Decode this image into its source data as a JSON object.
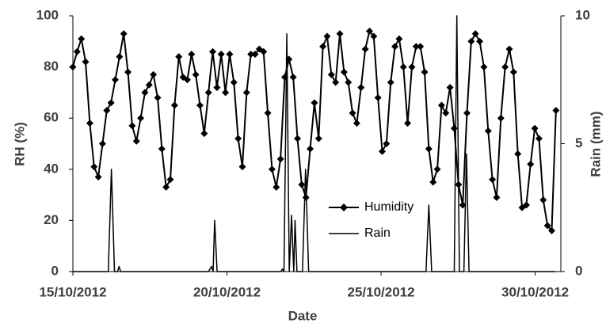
{
  "chart_data": {
    "type": "line",
    "x_label": "Date",
    "y_label": "RH (%)",
    "y2_label": "Rain (mm)",
    "xlim": [
      0,
      380
    ],
    "xticks": [
      {
        "value": 0,
        "label": "15/10/2012"
      },
      {
        "value": 120,
        "label": "20/10/2012"
      },
      {
        "value": 240,
        "label": "25/10/2012"
      },
      {
        "value": 360,
        "label": "30/10/2012"
      }
    ],
    "ylim": [
      0,
      100
    ],
    "yticks": [
      0,
      20,
      40,
      60,
      80,
      100
    ],
    "y2lim": [
      0,
      10
    ],
    "y2ticks": [
      0,
      5,
      10
    ],
    "grid": false,
    "legend": "lower center",
    "series": [
      {
        "name": "Humidity",
        "color": "#000000",
        "marker": "diamond",
        "x": [
          0,
          3.3,
          6.6,
          9.9,
          13.2,
          16.5,
          19.8,
          23.1,
          26.4,
          29.7,
          33,
          36.3,
          39.6,
          42.9,
          46.2,
          49.5,
          52.8,
          56.1,
          59.4,
          62.7,
          66,
          69.3,
          72.6,
          75.9,
          79.2,
          82.5,
          85.8,
          89.1,
          92.4,
          95.7,
          99,
          102.3,
          105.6,
          108.9,
          112.2,
          115.5,
          118.8,
          122.1,
          125.4,
          128.7,
          132,
          135.3,
          138.6,
          141.9,
          145.2,
          148.5,
          151.8,
          155.1,
          158.4,
          161.7,
          165,
          168.3,
          171.6,
          174.9,
          178.2,
          181.5,
          184.8,
          188.1,
          191.4,
          194.7,
          198,
          201.3,
          204.6,
          207.9,
          211.2,
          214.5,
          217.8,
          221.1,
          224.4,
          227.7,
          231,
          234.3,
          237.6,
          240.9,
          244.2,
          247.5,
          250.8,
          254.1,
          257.4,
          260.7,
          264,
          267.3,
          270.6,
          273.9,
          277.2,
          280.5,
          283.8,
          287.1,
          290.4,
          293.7,
          297,
          300.3,
          303.6,
          306.9,
          310.2,
          313.5,
          316.8,
          320.1,
          323.4,
          326.7,
          330,
          333.3,
          336.6,
          339.9,
          343.2,
          346.5,
          349.8,
          353.1,
          356.4,
          359.7,
          363,
          366.3,
          369.6,
          372.9,
          376.2
        ],
        "values": [
          80,
          86,
          91,
          82,
          58,
          41,
          37,
          50,
          63,
          66,
          75,
          84,
          93,
          78,
          57,
          51,
          60,
          70,
          73,
          77,
          68,
          48,
          33,
          36,
          65,
          84,
          76,
          75,
          85,
          77,
          65,
          54,
          70,
          86,
          72,
          85,
          70,
          85,
          74,
          52,
          41,
          70,
          85,
          85,
          87,
          86,
          62,
          40,
          33,
          44,
          76,
          83,
          76,
          52,
          34,
          29,
          48,
          66,
          52,
          88,
          92,
          77,
          74,
          93,
          78,
          74,
          62,
          58,
          72,
          87,
          94,
          92,
          68,
          47,
          50,
          74,
          88,
          91,
          80,
          58,
          80,
          88,
          88,
          78,
          48,
          35,
          40,
          65,
          62,
          72,
          56,
          34,
          26,
          62,
          90,
          93,
          90,
          80,
          55,
          36,
          29,
          60,
          80,
          87,
          78,
          46,
          25,
          26,
          42,
          56,
          52,
          28,
          18,
          16,
          63
        ]
      },
      {
        "name": "Rain",
        "color": "#000000",
        "axis": "y2",
        "x": [
          0,
          27.6,
          30,
          32.4,
          34.8,
          36,
          37.2,
          105.6,
          108,
          109.2,
          110.4,
          112.3,
          162,
          163.2,
          164.4,
          166.6,
          168.5,
          170.3,
          172,
          173,
          174.5,
          178.8,
          181.2,
          183.6,
          275,
          277.2,
          279.4,
          297,
          299,
          301,
          304.5,
          306.5,
          308.5,
          375.6
        ],
        "values": [
          0,
          0,
          4.0,
          0,
          0,
          0.2,
          0,
          0,
          0.2,
          0,
          2.0,
          0,
          0,
          0.1,
          0,
          9.3,
          0,
          2.2,
          0,
          2.0,
          0,
          0,
          4.0,
          0,
          0,
          2.6,
          0,
          0,
          10,
          0,
          0,
          4.6,
          0,
          0
        ]
      }
    ]
  }
}
